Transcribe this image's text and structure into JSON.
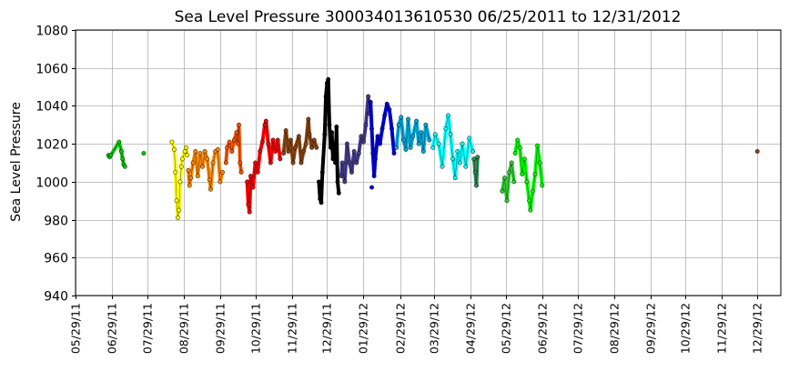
{
  "chart_data": {
    "type": "scatter",
    "title": "Sea Level Pressure 300034013610530  06/25/2011 to 12/31/2012",
    "ylabel": "Sea Level Pressure",
    "xlabel": "",
    "ylim": [
      940,
      1080
    ],
    "yticks": [
      940,
      960,
      980,
      1000,
      1020,
      1040,
      1060,
      1080
    ],
    "xlim": [
      "2011-05-29",
      "2013-01-18"
    ],
    "xticks": [
      "05/29/11",
      "06/29/11",
      "07/29/11",
      "08/29/11",
      "09/29/11",
      "10/29/11",
      "11/29/11",
      "12/29/11",
      "01/29/12",
      "02/29/12",
      "03/29/12",
      "04/29/12",
      "05/29/12",
      "06/29/12",
      "07/29/12",
      "08/29/12",
      "09/29/12",
      "10/29/12",
      "11/29/12",
      "12/29/12"
    ],
    "xtick_dates": [
      "2011-05-29",
      "2011-06-29",
      "2011-07-29",
      "2011-08-29",
      "2011-09-29",
      "2011-10-29",
      "2011-11-29",
      "2011-12-29",
      "2012-01-29",
      "2012-02-29",
      "2012-03-29",
      "2012-04-29",
      "2012-05-29",
      "2012-06-29",
      "2012-07-29",
      "2012-08-29",
      "2012-09-29",
      "2012-10-29",
      "2012-11-29",
      "2012-12-29"
    ],
    "grid": true,
    "series": [
      {
        "color": "#00cc00",
        "points": [
          [
            "2011-06-26",
            1014
          ],
          [
            "2011-06-27",
            1013
          ],
          [
            "2011-06-28",
            1014
          ],
          [
            "2011-07-05",
            1021
          ],
          [
            "2011-07-07",
            1016
          ],
          [
            "2011-07-08",
            1012
          ],
          [
            "2011-07-09",
            1009
          ],
          [
            "2011-07-10",
            1008
          ],
          [
            "2011-07-26",
            1015
          ]
        ]
      },
      {
        "color": "#ffff00",
        "points": [
          [
            "2011-08-19",
            1021
          ],
          [
            "2011-08-21",
            1017
          ],
          [
            "2011-08-22",
            1005
          ],
          [
            "2011-08-23",
            990
          ],
          [
            "2011-08-24",
            981
          ],
          [
            "2011-08-25",
            985
          ],
          [
            "2011-08-26",
            1000
          ],
          [
            "2011-08-27",
            1008
          ],
          [
            "2011-08-28",
            1012
          ],
          [
            "2011-08-30",
            1016
          ],
          [
            "2011-08-31",
            1018
          ],
          [
            "2011-09-01",
            1014
          ]
        ]
      },
      {
        "color": "#ff8800",
        "points": [
          [
            "2011-09-02",
            1006
          ],
          [
            "2011-09-03",
            998
          ],
          [
            "2011-09-04",
            1002
          ],
          [
            "2011-09-06",
            1010
          ],
          [
            "2011-09-08",
            1016
          ],
          [
            "2011-09-10",
            1003
          ],
          [
            "2011-09-12",
            1015
          ],
          [
            "2011-09-14",
            1008
          ],
          [
            "2011-09-16",
            1016
          ],
          [
            "2011-09-18",
            1012
          ],
          [
            "2011-09-20",
            1001
          ],
          [
            "2011-09-21",
            996
          ],
          [
            "2011-09-23",
            1010
          ],
          [
            "2011-09-25",
            1016
          ],
          [
            "2011-09-27",
            1017
          ],
          [
            "2011-09-29",
            1000
          ],
          [
            "2011-10-01",
            1005
          ]
        ]
      },
      {
        "color": "#ff5500",
        "points": [
          [
            "2011-10-04",
            1010
          ],
          [
            "2011-10-05",
            1018
          ],
          [
            "2011-10-07",
            1021
          ],
          [
            "2011-10-09",
            1016
          ],
          [
            "2011-10-11",
            1022
          ],
          [
            "2011-10-13",
            1026
          ],
          [
            "2011-10-14",
            1020
          ],
          [
            "2011-10-15",
            1030
          ],
          [
            "2011-10-16",
            1010
          ],
          [
            "2011-10-17",
            1005
          ]
        ]
      },
      {
        "color": "#ff0000",
        "points": [
          [
            "2011-10-22",
            1000
          ],
          [
            "2011-10-23",
            988
          ],
          [
            "2011-10-24",
            984
          ],
          [
            "2011-10-25",
            1003
          ],
          [
            "2011-10-27",
            997
          ],
          [
            "2011-10-29",
            1010
          ],
          [
            "2011-10-31",
            1005
          ],
          [
            "2011-11-02",
            1016
          ],
          [
            "2011-11-04",
            1021
          ],
          [
            "2011-11-06",
            1030
          ],
          [
            "2011-11-07",
            1032
          ],
          [
            "2011-11-09",
            1020
          ],
          [
            "2011-11-11",
            1010
          ],
          [
            "2011-11-13",
            1022
          ],
          [
            "2011-11-15",
            1016
          ],
          [
            "2011-11-17",
            1022
          ],
          [
            "2011-11-19",
            1012
          ]
        ]
      },
      {
        "color": "#8b4513",
        "points": [
          [
            "2011-11-22",
            1015
          ],
          [
            "2011-11-24",
            1027
          ],
          [
            "2011-11-26",
            1016
          ],
          [
            "2011-11-28",
            1022
          ],
          [
            "2011-11-30",
            1010
          ],
          [
            "2011-12-02",
            1018
          ],
          [
            "2011-12-05",
            1024
          ],
          [
            "2011-12-07",
            1010
          ],
          [
            "2011-12-09",
            1016
          ],
          [
            "2011-12-11",
            1020
          ],
          [
            "2011-12-13",
            1033
          ],
          [
            "2011-12-14",
            1025
          ],
          [
            "2011-12-16",
            1018
          ],
          [
            "2011-12-18",
            1022
          ],
          [
            "2011-12-20",
            1018
          ],
          [
            "2012-12-29",
            1016
          ]
        ]
      },
      {
        "color": "#000000",
        "points": [
          [
            "2011-12-22",
            1000
          ],
          [
            "2011-12-23",
            991
          ],
          [
            "2011-12-24",
            989
          ],
          [
            "2011-12-25",
            1005
          ],
          [
            "2011-12-27",
            1025
          ],
          [
            "2011-12-28",
            1045
          ],
          [
            "2011-12-29",
            1052
          ],
          [
            "2011-12-30",
            1054
          ],
          [
            "2011-12-31",
            1030
          ],
          [
            "2012-01-01",
            1018
          ],
          [
            "2012-01-02",
            1026
          ],
          [
            "2012-01-03",
            1012
          ],
          [
            "2012-01-04",
            1020
          ],
          [
            "2012-01-05",
            1010
          ],
          [
            "2012-01-06",
            1029
          ],
          [
            "2012-01-07",
            1000
          ],
          [
            "2012-01-08",
            994
          ]
        ]
      },
      {
        "color": "#483d8b",
        "points": [
          [
            "2012-01-10",
            1003
          ],
          [
            "2012-01-11",
            1010
          ],
          [
            "2012-01-13",
            1000
          ],
          [
            "2012-01-15",
            1020
          ],
          [
            "2012-01-17",
            1010
          ],
          [
            "2012-01-19",
            1005
          ],
          [
            "2012-01-21",
            1016
          ],
          [
            "2012-01-23",
            1010
          ],
          [
            "2012-01-25",
            1015
          ],
          [
            "2012-01-27",
            1024
          ],
          [
            "2012-01-29",
            1021
          ],
          [
            "2012-01-31",
            1030
          ],
          [
            "2012-02-02",
            1045
          ],
          [
            "2012-02-03",
            1036
          ]
        ]
      },
      {
        "color": "#0000dd",
        "points": [
          [
            "2012-02-04",
            1042
          ],
          [
            "2012-02-05",
            1028
          ],
          [
            "2012-02-06",
            1015
          ],
          [
            "2012-02-07",
            1003
          ],
          [
            "2012-02-08",
            1012
          ],
          [
            "2012-02-10",
            1024
          ],
          [
            "2012-02-12",
            1020
          ],
          [
            "2012-02-14",
            1028
          ],
          [
            "2012-02-16",
            1035
          ],
          [
            "2012-02-18",
            1041
          ],
          [
            "2012-02-20",
            1038
          ],
          [
            "2012-02-22",
            1028
          ],
          [
            "2012-02-24",
            1015
          ],
          [
            "2012-02-05",
            997
          ]
        ]
      },
      {
        "color": "#00aadd",
        "points": [
          [
            "2012-02-26",
            1018
          ],
          [
            "2012-02-28",
            1030
          ],
          [
            "2012-03-01",
            1034
          ],
          [
            "2012-03-03",
            1022
          ],
          [
            "2012-03-05",
            1017
          ],
          [
            "2012-03-07",
            1033
          ],
          [
            "2012-03-09",
            1018
          ],
          [
            "2012-03-11",
            1024
          ],
          [
            "2012-03-14",
            1032
          ],
          [
            "2012-03-16",
            1020
          ],
          [
            "2012-03-18",
            1026
          ],
          [
            "2012-03-20",
            1016
          ],
          [
            "2012-03-22",
            1030
          ],
          [
            "2012-03-25",
            1022
          ]
        ]
      },
      {
        "color": "#00ffff",
        "points": [
          [
            "2012-03-28",
            1018
          ],
          [
            "2012-03-30",
            1025
          ],
          [
            "2012-04-02",
            1020
          ],
          [
            "2012-04-05",
            1008
          ],
          [
            "2012-04-08",
            1028
          ],
          [
            "2012-04-10",
            1035
          ],
          [
            "2012-04-12",
            1025
          ],
          [
            "2012-04-14",
            1012
          ],
          [
            "2012-04-16",
            1002
          ],
          [
            "2012-04-18",
            1016
          ],
          [
            "2012-04-20",
            1010
          ],
          [
            "2012-04-22",
            1020
          ],
          [
            "2012-04-25",
            1008
          ],
          [
            "2012-04-28",
            1023
          ],
          [
            "2012-05-01",
            1016
          ]
        ]
      },
      {
        "color": "#2e8b57",
        "points": [
          [
            "2012-05-02",
            1012
          ],
          [
            "2012-05-03",
            1005
          ],
          [
            "2012-05-04",
            998
          ],
          [
            "2012-05-05",
            1013
          ]
        ]
      },
      {
        "color": "#33cc33",
        "points": [
          [
            "2012-05-26",
            995
          ],
          [
            "2012-05-28",
            1002
          ],
          [
            "2012-05-30",
            990
          ],
          [
            "2012-06-01",
            1005
          ],
          [
            "2012-06-03",
            1010
          ],
          [
            "2012-06-05",
            1000
          ]
        ]
      },
      {
        "color": "#00ff00",
        "points": [
          [
            "2012-06-06",
            1015
          ],
          [
            "2012-06-08",
            1022
          ],
          [
            "2012-06-10",
            1018
          ],
          [
            "2012-06-12",
            1004
          ],
          [
            "2012-06-14",
            1012
          ],
          [
            "2012-06-16",
            1000
          ],
          [
            "2012-06-18",
            990
          ],
          [
            "2012-06-19",
            985
          ],
          [
            "2012-06-21",
            995
          ],
          [
            "2012-06-23",
            1004
          ],
          [
            "2012-06-25",
            1019
          ],
          [
            "2012-06-27",
            1010
          ],
          [
            "2012-06-29",
            998
          ]
        ]
      }
    ]
  }
}
